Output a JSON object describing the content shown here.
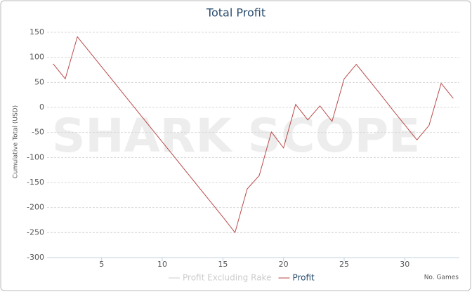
{
  "chart_data": {
    "type": "line",
    "title": "Total Profit",
    "watermark": "SHARK SCOPE",
    "xlabel": "No. Games",
    "ylabel": "Cumulative Total (USD)",
    "x": [
      1,
      2,
      3,
      4,
      5,
      6,
      7,
      8,
      9,
      10,
      11,
      12,
      13,
      14,
      15,
      16,
      17,
      18,
      19,
      20,
      21,
      22,
      23,
      24,
      25,
      26,
      27,
      28,
      29,
      30,
      31,
      32,
      33,
      34
    ],
    "series": [
      {
        "name": "Profit Excluding Rake",
        "color": "#cccccc",
        "visible": false,
        "values": [
          null,
          null,
          null,
          null,
          null,
          null,
          null,
          null,
          null,
          null,
          null,
          null,
          null,
          null,
          null,
          null,
          null,
          null,
          null,
          null,
          null,
          null,
          null,
          null,
          null,
          null,
          null,
          null,
          null,
          null,
          null,
          null,
          null,
          null
        ]
      },
      {
        "name": "Profit",
        "color": "#b94a48",
        "visible": true,
        "values": [
          87,
          57,
          141,
          111,
          81,
          51,
          21,
          -9,
          -39,
          -69,
          -99,
          -129,
          -159,
          -189,
          -219,
          -250,
          -163,
          -136,
          -49,
          -81,
          6,
          -25,
          3,
          -28,
          57,
          86,
          56,
          26,
          -5,
          -35,
          -65,
          -36,
          48,
          18
        ]
      }
    ],
    "xlim": [
      0.5,
      34.5
    ],
    "xticks": [
      5,
      10,
      15,
      20,
      25,
      30
    ],
    "ylim": [
      -300,
      150
    ],
    "yticks": [
      -300,
      -250,
      -200,
      -150,
      -100,
      -50,
      0,
      50,
      100,
      150
    ],
    "grid": true
  }
}
